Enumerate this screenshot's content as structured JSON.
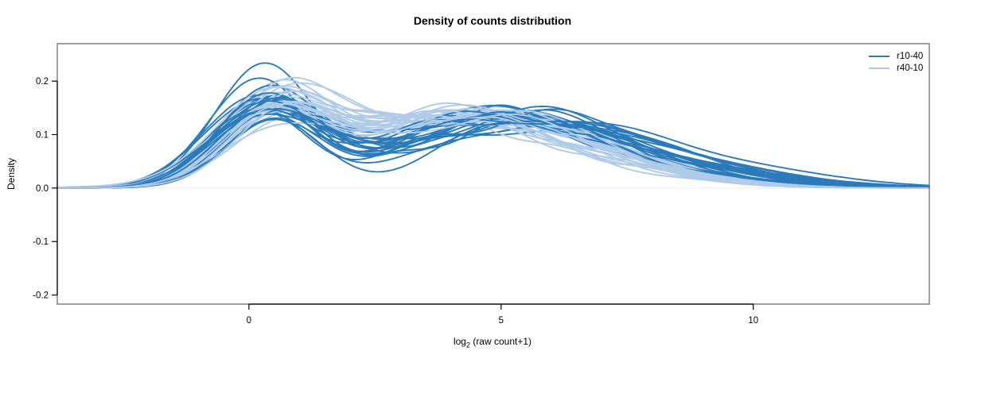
{
  "title": "Density of counts distribution",
  "chart_data": {
    "type": "line",
    "title": "Density of counts distribution",
    "xlabel": "log2 (raw count+1)",
    "xlabel_parts": {
      "main": "log",
      "sub": "2",
      "rest": " (raw count+1)"
    },
    "ylabel": "Density",
    "xlim": [
      -3.8,
      13.49
    ],
    "ylim": [
      -0.217,
      0.27
    ],
    "x_ticks": [
      {
        "value": 0,
        "label": "0"
      },
      {
        "value": 5,
        "label": "5"
      },
      {
        "value": 10,
        "label": "10"
      }
    ],
    "y_ticks": [
      {
        "value": 0.2,
        "label": "0.2"
      },
      {
        "value": 0.1,
        "label": "0.1"
      },
      {
        "value": 0.0,
        "label": "0.0"
      },
      {
        "value": -0.1,
        "label": "-0.1"
      },
      {
        "value": -0.2,
        "label": "-0.2"
      }
    ],
    "grid": false,
    "legend_position": "top-right",
    "zero_line_color": "#ececec",
    "box_color": "#787878",
    "axis_color": "#000000",
    "curve_model": "density(x) = sum of 3 gaussians [h1,m1,s1,h2,m2,s2,h3,m3,s3] + wiggle [amp,freq,phase] windowed around x=4.2",
    "series": [
      {
        "name": "r10-40",
        "color": "#2b7bba",
        "curves": [
          [
            0.215,
            0.25,
            0.95,
            0.1,
            4.8,
            2.4,
            0.03,
            8.0,
            1.8,
            0.008,
            2.1,
            0.5
          ],
          [
            0.196,
            0.18,
            1.0,
            0.11,
            5.2,
            2.2,
            0.028,
            8.4,
            1.9,
            0.01,
            1.8,
            2.2
          ],
          [
            0.168,
            0.35,
            0.92,
            0.118,
            4.4,
            2.3,
            0.035,
            7.6,
            1.7,
            0.007,
            2.4,
            4.1
          ],
          [
            0.162,
            0.1,
            1.05,
            0.125,
            5.0,
            2.1,
            0.03,
            8.8,
            2.0,
            0.012,
            2.0,
            1.1
          ],
          [
            0.16,
            0.45,
            0.9,
            0.13,
            4.6,
            2.0,
            0.026,
            7.9,
            2.1,
            0.009,
            2.6,
            3.3
          ],
          [
            0.158,
            0.3,
            1.1,
            0.122,
            5.5,
            2.2,
            0.024,
            9.0,
            1.8,
            0.011,
            1.7,
            5.0
          ],
          [
            0.156,
            0.2,
            0.98,
            0.135,
            4.9,
            2.0,
            0.02,
            8.2,
            2.2,
            0.008,
            2.2,
            0.2
          ],
          [
            0.154,
            0.55,
            0.95,
            0.128,
            5.3,
            2.3,
            0.027,
            8.6,
            1.6,
            0.01,
            2.5,
            2.8
          ],
          [
            0.152,
            0.15,
            1.08,
            0.14,
            4.5,
            2.1,
            0.022,
            7.4,
            2.0,
            0.007,
            1.9,
            4.6
          ],
          [
            0.15,
            0.4,
            1.0,
            0.132,
            5.6,
            2.0,
            0.03,
            9.2,
            1.7,
            0.012,
            2.3,
            1.7
          ],
          [
            0.148,
            0.28,
            0.93,
            0.126,
            4.3,
            2.4,
            0.033,
            7.8,
            1.9,
            0.009,
            2.0,
            3.9
          ],
          [
            0.146,
            0.5,
            1.12,
            0.138,
            5.1,
            1.9,
            0.018,
            8.1,
            2.3,
            0.011,
            2.7,
            0.9
          ],
          [
            0.144,
            0.22,
            1.02,
            0.12,
            5.8,
            2.1,
            0.025,
            9.4,
            1.8,
            0.008,
            1.6,
            2.5
          ],
          [
            0.142,
            0.38,
            0.96,
            0.133,
            4.7,
            2.2,
            0.028,
            8.3,
            2.0,
            0.01,
            2.4,
            5.5
          ],
          [
            0.14,
            0.12,
            1.06,
            0.127,
            5.4,
            2.0,
            0.021,
            7.7,
            1.9,
            0.013,
            2.1,
            1.4
          ],
          [
            0.138,
            0.48,
            0.91,
            0.136,
            4.4,
            2.3,
            0.024,
            8.7,
            1.7,
            0.007,
            2.6,
            3.0
          ],
          [
            0.136,
            0.3,
            1.15,
            0.124,
            5.0,
            2.1,
            0.029,
            9.0,
            2.1,
            0.009,
            1.8,
            4.4
          ],
          [
            0.134,
            0.58,
            0.97,
            0.13,
            5.7,
            2.2,
            0.019,
            8.0,
            1.8,
            0.012,
            2.2,
            0.6
          ],
          [
            0.132,
            0.2,
            1.03,
            0.118,
            4.6,
            2.0,
            0.026,
            7.5,
            2.2,
            0.008,
            2.5,
            2.0
          ],
          [
            0.13,
            0.42,
            0.94,
            0.128,
            5.2,
            2.4,
            0.023,
            8.9,
            1.6,
            0.01,
            1.9,
            5.2
          ],
          [
            0.128,
            0.33,
            1.09,
            0.121,
            4.8,
            2.1,
            0.027,
            8.4,
            2.0,
            0.011,
            2.3,
            3.6
          ],
          [
            0.126,
            0.52,
            0.99,
            0.134,
            5.5,
            1.9,
            0.02,
            7.2,
            1.9,
            0.008,
            2.0,
            1.9
          ],
          [
            0.124,
            0.25,
            1.04,
            0.116,
            4.2,
            2.2,
            0.025,
            7.0,
            2.1,
            0.009,
            2.7,
            4.8
          ],
          [
            0.122,
            0.45,
            0.92,
            0.125,
            5.9,
            2.0,
            0.035,
            9.5,
            2.0,
            0.012,
            1.7,
            0.3
          ],
          [
            0.135,
            0.35,
            1.0,
            0.129,
            5.1,
            2.2,
            0.024,
            8.5,
            1.9,
            0.01,
            2.4,
            2.4
          ],
          [
            0.145,
            0.27,
            0.97,
            0.123,
            4.9,
            2.3,
            0.026,
            8.1,
            1.8,
            0.009,
            2.1,
            5.8
          ]
        ]
      },
      {
        "name": "r40-10",
        "color": "#b0cbe8",
        "curves": [
          [
            0.15,
            0.55,
            1.0,
            0.12,
            3.8,
            2.4,
            0.025,
            7.0,
            1.9,
            0.009,
            2.0,
            1.0
          ],
          [
            0.145,
            0.4,
            1.08,
            0.128,
            4.2,
            2.2,
            0.02,
            6.6,
            2.1,
            0.011,
            2.3,
            3.5
          ],
          [
            0.14,
            0.62,
            0.95,
            0.135,
            3.5,
            2.3,
            0.028,
            7.4,
            1.8,
            0.008,
            1.8,
            5.1
          ],
          [
            0.138,
            0.3,
            1.12,
            0.124,
            4.6,
            2.1,
            0.022,
            6.9,
            2.0,
            0.01,
            2.5,
            0.4
          ],
          [
            0.135,
            0.5,
            0.98,
            0.138,
            3.9,
            2.5,
            0.018,
            7.8,
            1.7,
            0.007,
            2.1,
            2.7
          ],
          [
            0.132,
            0.7,
            1.05,
            0.126,
            4.4,
            2.0,
            0.026,
            6.4,
            2.2,
            0.012,
            1.9,
            4.2
          ],
          [
            0.13,
            0.35,
            1.1,
            0.132,
            3.6,
            2.2,
            0.024,
            7.2,
            1.9,
            0.009,
            2.6,
            1.6
          ],
          [
            0.128,
            0.58,
            0.93,
            0.14,
            4.0,
            2.3,
            0.019,
            6.7,
            2.1,
            0.011,
            2.2,
            5.7
          ],
          [
            0.126,
            0.45,
            1.15,
            0.122,
            4.8,
            2.1,
            0.027,
            7.6,
            1.8,
            0.008,
            1.7,
            2.1
          ],
          [
            0.124,
            0.65,
            1.0,
            0.13,
            3.4,
            2.4,
            0.021,
            6.2,
            2.0,
            0.01,
            2.4,
            3.9
          ],
          [
            0.122,
            0.28,
            1.07,
            0.136,
            4.3,
            2.2,
            0.023,
            7.1,
            1.9,
            0.009,
            2.0,
            0.8
          ],
          [
            0.12,
            0.52,
            0.96,
            0.125,
            3.7,
            2.0,
            0.025,
            6.8,
            2.1,
            0.012,
            2.7,
            4.7
          ],
          [
            0.118,
            0.38,
            1.13,
            0.133,
            4.5,
            2.3,
            0.017,
            7.5,
            1.8,
            0.008,
            1.8,
            1.3
          ],
          [
            0.116,
            0.6,
            0.99,
            0.127,
            3.3,
            2.1,
            0.024,
            6.5,
            2.0,
            0.01,
            2.3,
            5.4
          ],
          [
            0.114,
            0.42,
            1.04,
            0.138,
            4.1,
            2.4,
            0.02,
            7.3,
            1.9,
            0.011,
            2.1,
            2.9
          ],
          [
            0.112,
            0.68,
            1.09,
            0.123,
            4.7,
            2.0,
            0.026,
            6.3,
            2.1,
            0.007,
            2.5,
            0.1
          ],
          [
            0.11,
            0.32,
            0.94,
            0.134,
            3.5,
            2.2,
            0.022,
            7.7,
            1.8,
            0.009,
            1.9,
            3.2
          ],
          [
            0.108,
            0.55,
            1.11,
            0.128,
            4.4,
            2.3,
            0.018,
            6.6,
            2.0,
            0.012,
            2.6,
            4.4
          ],
          [
            0.106,
            0.48,
            1.02,
            0.121,
            3.8,
            2.1,
            0.025,
            7.0,
            1.9,
            0.008,
            2.2,
            1.8
          ],
          [
            0.104,
            0.62,
            0.97,
            0.131,
            4.2,
            2.5,
            0.021,
            6.1,
            2.2,
            0.01,
            2.0,
            5.9
          ],
          [
            0.102,
            0.36,
            1.06,
            0.126,
            3.6,
            2.2,
            0.023,
            7.9,
            1.7,
            0.009,
            2.4,
            2.3
          ],
          [
            0.1,
            0.58,
            1.14,
            0.137,
            4.6,
            2.1,
            0.019,
            6.9,
            2.0,
            0.011,
            1.7,
            3.7
          ],
          [
            0.115,
            0.44,
            1.01,
            0.129,
            3.9,
            2.3,
            0.024,
            7.2,
            1.9,
            0.008,
            2.3,
            0.6
          ],
          [
            0.125,
            0.66,
            0.95,
            0.124,
            4.3,
            2.2,
            0.02,
            6.0,
            2.1,
            0.01,
            2.1,
            5.0
          ],
          [
            0.135,
            0.34,
            1.08,
            0.132,
            3.7,
            2.4,
            0.022,
            7.6,
            1.8,
            0.009,
            2.5,
            1.5
          ],
          [
            0.142,
            0.56,
            1.03,
            0.119,
            4.5,
            2.0,
            0.026,
            6.8,
            2.0,
            0.011,
            1.8,
            4.0
          ]
        ]
      }
    ]
  }
}
